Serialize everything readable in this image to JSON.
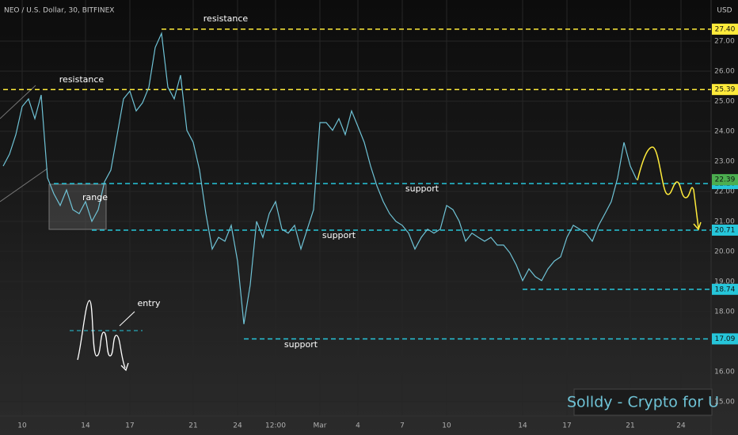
{
  "chart_data": {
    "type": "line",
    "title": "NEO / U.S. Dollar, 30, BITFINEX",
    "y_axis_label": "USD",
    "categories": [
      null,
      null,
      null,
      "10",
      null,
      null,
      null,
      null,
      null,
      null,
      null,
      null,
      null,
      "14",
      null,
      null,
      null,
      null,
      null,
      null,
      "17",
      null,
      null,
      null,
      null,
      null,
      null,
      null,
      null,
      null,
      "21",
      null,
      null,
      null,
      null,
      null,
      null,
      "24",
      null,
      null,
      null,
      null,
      null,
      "12:00",
      null,
      null,
      null,
      null,
      null,
      null,
      "Mar",
      null,
      null,
      null,
      null,
      null,
      "4",
      null,
      null,
      null,
      null,
      null,
      null,
      "7",
      null,
      null,
      null,
      null,
      null,
      null,
      "10",
      null,
      null,
      null,
      null,
      null,
      null,
      null,
      null,
      null,
      null,
      null,
      "14",
      null,
      null,
      null,
      null,
      null,
      null,
      "17",
      null,
      null,
      null,
      null,
      null,
      null,
      null,
      null,
      null,
      "21",
      null,
      null,
      null,
      null,
      null,
      null,
      null,
      "24",
      null,
      null,
      null,
      null
    ],
    "values": [
      22.84,
      23.24,
      23.89,
      24.82,
      25.08,
      24.42,
      25.21,
      22.45,
      21.92,
      21.53,
      22.05,
      21.39,
      21.26,
      21.66,
      21.0,
      21.39,
      22.32,
      22.71,
      23.89,
      25.08,
      25.34,
      24.68,
      24.95,
      25.47,
      26.79,
      27.26,
      25.47,
      25.08,
      25.87,
      24.03,
      23.63,
      22.71,
      21.26,
      20.08,
      20.47,
      20.34,
      20.87,
      19.68,
      17.58,
      18.89,
      21.0,
      20.47,
      21.26,
      21.66,
      20.74,
      20.61,
      20.87,
      20.08,
      20.74,
      21.39,
      24.29,
      24.29,
      24.03,
      24.42,
      23.89,
      24.68,
      24.16,
      23.63,
      22.84,
      22.18,
      21.66,
      21.26,
      21.0,
      20.87,
      20.61,
      20.08,
      20.47,
      20.74,
      20.61,
      20.74,
      21.53,
      21.39,
      21.0,
      20.34,
      20.61,
      20.47,
      20.34,
      20.47,
      20.21,
      20.21,
      19.95,
      19.55,
      19.03,
      19.42,
      19.16,
      19.03,
      19.42,
      19.68,
      19.82,
      20.47,
      20.87,
      20.74,
      20.61,
      20.34,
      20.87,
      21.26,
      21.66,
      22.45,
      23.63,
      22.84,
      22.39,
      null,
      null,
      null,
      null,
      null,
      null,
      null,
      null,
      null,
      null,
      null
    ],
    "color": "#6fc3d6",
    "ylim": [
      13.89,
      28.37
    ],
    "yticks": [
      {
        "value": 15,
        "label": "15.00"
      },
      {
        "value": 16,
        "label": "16.00"
      },
      {
        "value": 17,
        "label": "17.00"
      },
      {
        "value": 18,
        "label": "18.00"
      },
      {
        "value": 19,
        "label": "19.00"
      },
      {
        "value": 20,
        "label": "20.00"
      },
      {
        "value": 21,
        "label": "21.00"
      },
      {
        "value": 22,
        "label": "22.00"
      },
      {
        "value": 23,
        "label": "23.00"
      },
      {
        "value": 24,
        "label": "24.00"
      },
      {
        "value": 25,
        "label": "25.00"
      },
      {
        "value": 26,
        "label": "26.00"
      },
      {
        "value": 27,
        "label": "27.00"
      }
    ],
    "grid": true,
    "levels": [
      {
        "value": 27.4,
        "label": "27.40",
        "color": "#ffeb3b",
        "start": 25
      },
      {
        "value": 25.39,
        "label": "25.39",
        "color": "#ffeb3b",
        "start": 0
      },
      {
        "value": 22.26,
        "label": "22.26",
        "color": "#26c6da",
        "start": 8
      },
      {
        "value": 20.71,
        "label": "20.71",
        "color": "#26c6da",
        "start": 14
      },
      {
        "value": 18.74,
        "label": "18.74",
        "color": "#26c6da",
        "start": 82
      },
      {
        "value": 17.09,
        "label": "17.09",
        "color": "#26c6da",
        "start": 38
      }
    ],
    "last_price": {
      "value": 22.39,
      "label": "22.39",
      "color": "#4caf50"
    },
    "annotations": [
      "resistance",
      "resistance",
      "range",
      "support",
      "support",
      "support",
      "entry"
    ],
    "watermark": "Solldy - Crypto for U"
  }
}
